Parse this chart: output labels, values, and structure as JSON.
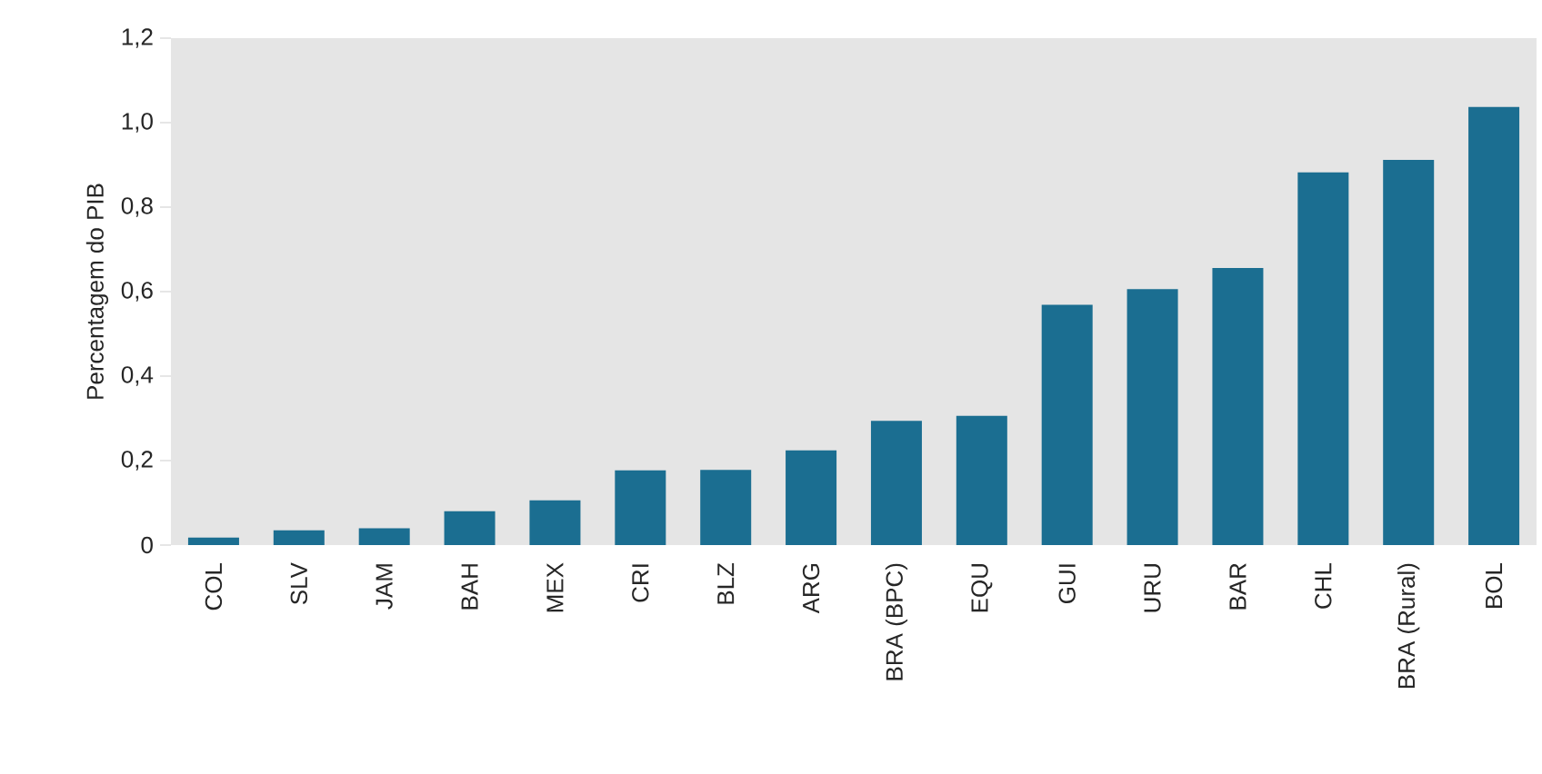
{
  "chart_data": {
    "type": "bar",
    "ylabel": "Percentagem do PIB",
    "categories": [
      "COL",
      "SLV",
      "JAM",
      "BAH",
      "MEX",
      "CRI",
      "BLZ",
      "ARG",
      "BRA (BPC)",
      "EQU",
      "GUI",
      "URU",
      "BAR",
      "CHL",
      "BRA (Rural)",
      "BOL"
    ],
    "values": [
      0.018,
      0.035,
      0.04,
      0.08,
      0.106,
      0.177,
      0.178,
      0.224,
      0.294,
      0.306,
      0.569,
      0.606,
      0.656,
      0.882,
      0.912,
      1.037
    ],
    "color": "#1b6e91",
    "ylim": [
      0,
      1.2
    ],
    "yticks": [
      0,
      {
        "value": 0.2,
        "label": "0,2"
      },
      {
        "value": 0.4,
        "label": "0,4"
      },
      {
        "value": 0.6,
        "label": "0,6"
      },
      {
        "value": 0.8,
        "label": "0,8"
      },
      {
        "value": 1.0,
        "label": "1,0"
      },
      {
        "value": 1.2,
        "label": "1,2"
      }
    ],
    "grid": false
  }
}
